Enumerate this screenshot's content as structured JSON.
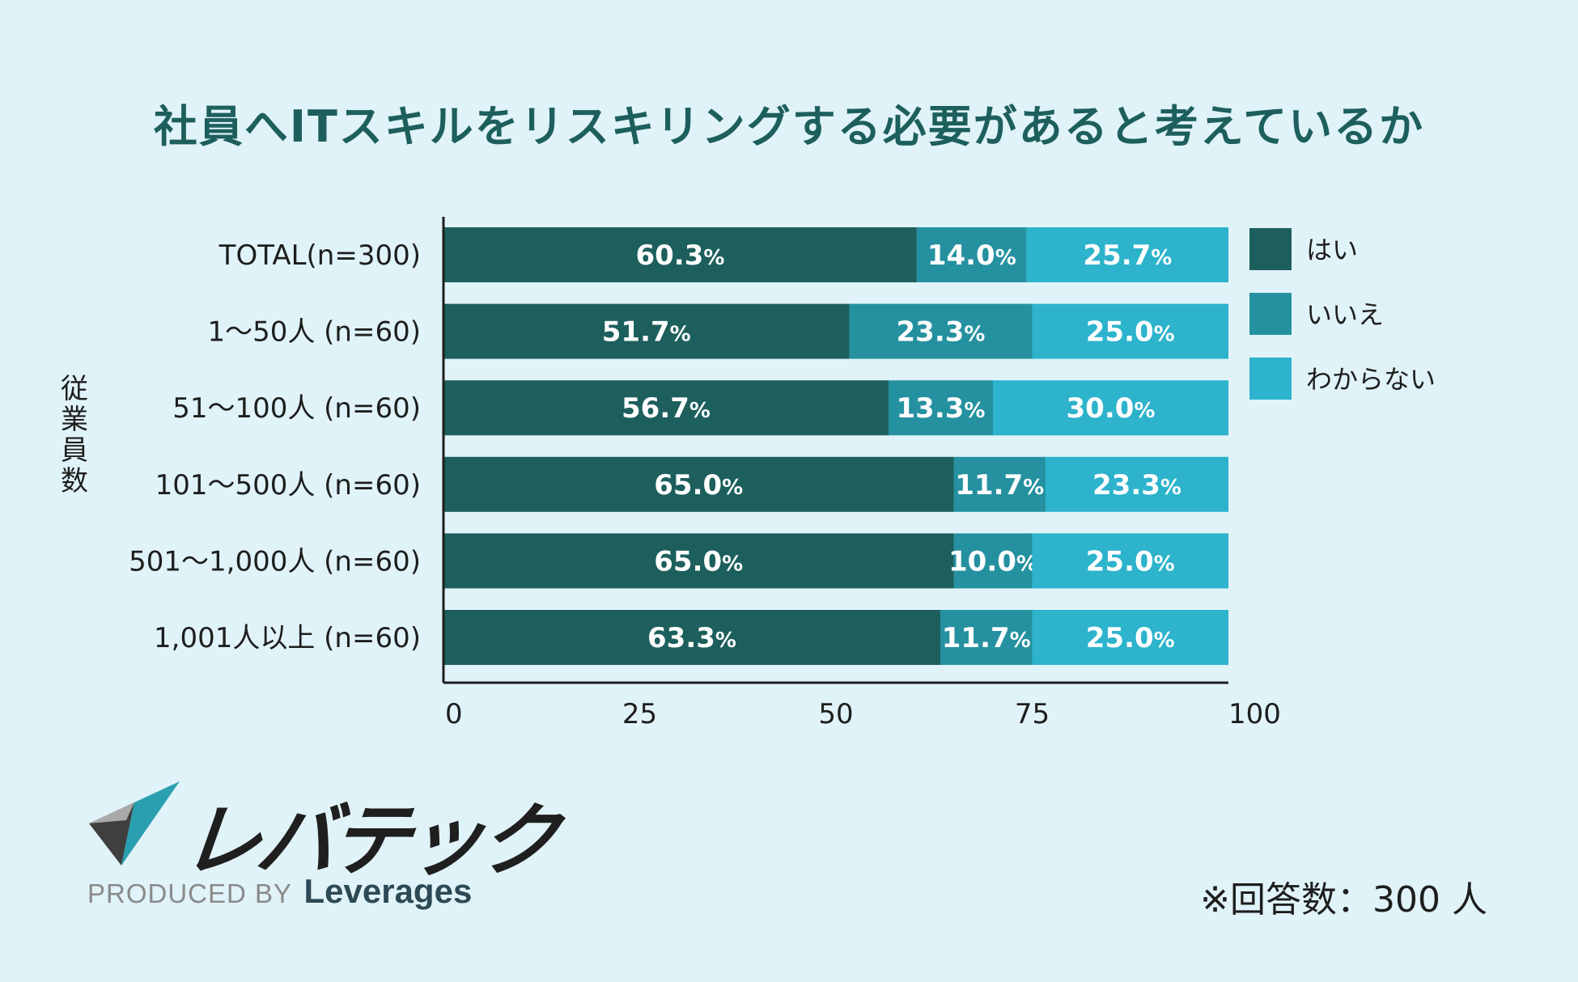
{
  "chart_data": {
    "type": "bar",
    "orientation": "horizontal",
    "stacked": true,
    "title": "社員へITスキルをリスキリングする必要があると考えているか",
    "ylabel": "従業員数",
    "xlabel": "",
    "xlim": [
      0,
      100
    ],
    "xticks": [
      "0",
      "25",
      "50",
      "75",
      "100"
    ],
    "categories": [
      "TOTAL(n=300)",
      "1〜50人 (n=60)",
      "51〜100人 (n=60)",
      "101〜500人 (n=60)",
      "501〜1,000人 (n=60)",
      "1,001人以上 (n=60)"
    ],
    "series": [
      {
        "name": "はい",
        "color": "#1d5f5d",
        "values": [
          60.3,
          51.7,
          56.7,
          65.0,
          65.0,
          63.3
        ],
        "labels": [
          "60.3",
          "51.7",
          "56.7",
          "65.0",
          "65.0",
          "63.3"
        ]
      },
      {
        "name": "いいえ",
        "color": "#2591a0",
        "values": [
          14.0,
          23.3,
          13.3,
          11.7,
          10.0,
          11.7
        ],
        "labels": [
          "14.0",
          "23.3",
          "13.3",
          "11.7",
          "10.0",
          "11.7"
        ]
      },
      {
        "name": "わからない",
        "color": "#2db3cc",
        "values": [
          25.7,
          25.0,
          30.0,
          23.3,
          25.0,
          25.0
        ],
        "labels": [
          "25.7",
          "25.0",
          "30.0",
          "23.3",
          "25.0",
          "25.0"
        ]
      }
    ],
    "value_suffix": "%",
    "legend_position": "right"
  },
  "brand": {
    "name": "レバテック",
    "produced_by": "PRODUCED BY",
    "company": "Leverages"
  },
  "note": "※回答数：300 人",
  "colors": {
    "background": "#e0f3f8",
    "title": "#1d5f5d"
  }
}
